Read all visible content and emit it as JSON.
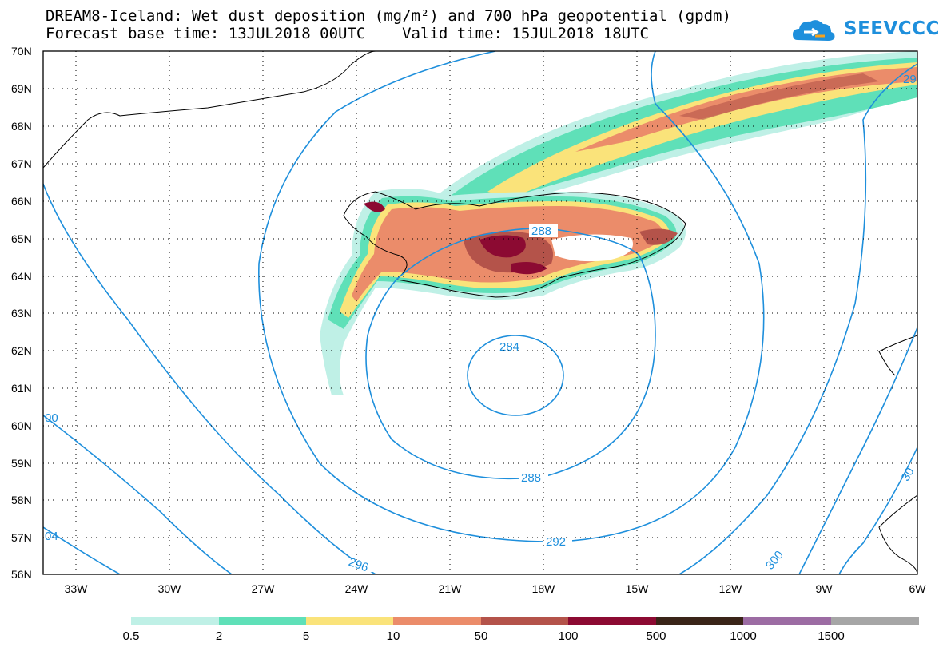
{
  "title": {
    "line1": "DREAM8-Iceland: Wet dust deposition (mg/m²) and 700 hPa geopotential (gpdm)",
    "line2": "Forecast base time: 13JUL2018 00UTC    Valid time: 15JUL2018 18UTC"
  },
  "logo": {
    "text": "SEEVCCC",
    "icon": "cloud-icon",
    "color": "#1e8fdc"
  },
  "axes": {
    "lat_labels": [
      "70N",
      "69N",
      "68N",
      "67N",
      "66N",
      "65N",
      "64N",
      "63N",
      "62N",
      "61N",
      "60N",
      "59N",
      "58N",
      "57N",
      "56N"
    ],
    "lon_labels": [
      "33W",
      "30W",
      "27W",
      "24W",
      "21W",
      "18W",
      "15W",
      "12W",
      "9W",
      "6W"
    ]
  },
  "contours": {
    "color": "#1e8fdc",
    "labels": [
      "288",
      "284",
      "288",
      "292",
      "296",
      "300",
      "00",
      "04",
      "29",
      "30"
    ]
  },
  "legend": {
    "colors": [
      "#bff0e6",
      "#5fe0b8",
      "#fae37a",
      "#eb8c6a",
      "#b4534a",
      "#8c0a32",
      "#3a2418",
      "#9c6ca3",
      "#a6a6a6"
    ],
    "labels": [
      "0.5",
      "2",
      "5",
      "10",
      "50",
      "100",
      "500",
      "1000",
      "1500"
    ]
  }
}
